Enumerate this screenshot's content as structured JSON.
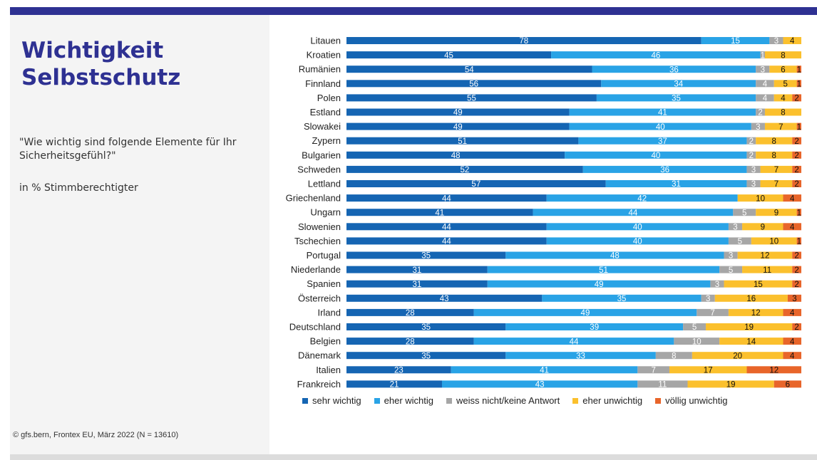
{
  "title": "Wichtigkeit Selbstschutz",
  "question": "\"Wie wichtig sind folgende Elemente für Ihr Sicherheitsgefühl?\"",
  "subtitle": "in % Stimmberechtigter",
  "source": "© gfs.bern, Frontex EU, März 2022 (N = 13610)",
  "chart_data": {
    "type": "bar",
    "orientation": "horizontal",
    "stacked": true,
    "percent": true,
    "categories": [
      "Litauen",
      "Kroatien",
      "Rumänien",
      "Finnland",
      "Polen",
      "Estland",
      "Slowakei",
      "Zypern",
      "Bulgarien",
      "Schweden",
      "Lettland",
      "Griechenland",
      "Ungarn",
      "Slowenien",
      "Tschechien",
      "Portugal",
      "Niederlande",
      "Spanien",
      "Österreich",
      "Irland",
      "Deutschland",
      "Belgien",
      "Dänemark",
      "Italien",
      "Frankreich"
    ],
    "series": [
      {
        "name": "sehr wichtig",
        "color": "#1565b3",
        "labelColor": "#ffffff",
        "values": [
          78,
          45,
          54,
          56,
          55,
          49,
          49,
          51,
          48,
          52,
          57,
          44,
          41,
          44,
          44,
          35,
          31,
          31,
          43,
          28,
          35,
          28,
          35,
          23,
          21
        ]
      },
      {
        "name": "eher wichtig",
        "color": "#29a3e6",
        "labelColor": "#ffffff",
        "values": [
          15,
          46,
          36,
          34,
          35,
          41,
          40,
          37,
          40,
          36,
          31,
          42,
          44,
          40,
          40,
          48,
          51,
          49,
          35,
          49,
          39,
          44,
          33,
          41,
          43
        ]
      },
      {
        "name": "weiss nicht/keine Antwort",
        "color": "#a6a6a6",
        "labelColor": "#ffffff",
        "values": [
          3,
          1,
          3,
          4,
          4,
          2,
          3,
          2,
          2,
          3,
          3,
          0,
          5,
          3,
          5,
          3,
          5,
          3,
          3,
          7,
          5,
          10,
          8,
          7,
          11
        ]
      },
      {
        "name": "eher unwichtig",
        "color": "#fbc02d",
        "labelColor": "#111111",
        "values": [
          4,
          8,
          6,
          5,
          4,
          8,
          7,
          8,
          8,
          7,
          7,
          10,
          9,
          9,
          10,
          12,
          11,
          15,
          16,
          12,
          19,
          14,
          20,
          17,
          19
        ]
      },
      {
        "name": "völlig unwichtig",
        "color": "#e8652a",
        "labelColor": "#111111",
        "values": [
          0,
          0,
          1,
          1,
          2,
          0,
          1,
          2,
          2,
          2,
          2,
          4,
          1,
          4,
          1,
          2,
          2,
          2,
          3,
          4,
          2,
          4,
          4,
          12,
          6
        ]
      }
    ],
    "xlim": [
      0,
      100
    ],
    "legend_position": "bottom"
  }
}
